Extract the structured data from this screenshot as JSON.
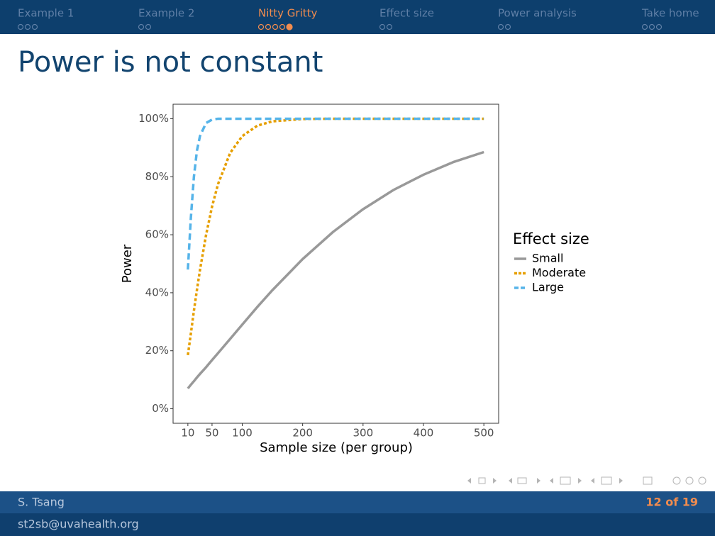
{
  "header": {
    "sections": [
      {
        "name": "Example 1",
        "frames": 3
      },
      {
        "name": "Example 2",
        "frames": 2
      },
      {
        "name": "Nitty Gritty",
        "frames": 5,
        "current_frame": 5
      },
      {
        "name": "Effect size",
        "frames": 2
      },
      {
        "name": "Power analysis",
        "frames": 2
      },
      {
        "name": "Take home",
        "frames": 3
      }
    ]
  },
  "slide": {
    "title": "Power is not constant"
  },
  "chart_data": {
    "type": "line",
    "x_label": "Sample size (per group)",
    "y_label": "Power",
    "legend_title": "Effect size",
    "legend_position": "right",
    "x": [
      10,
      15,
      20,
      25,
      30,
      40,
      50,
      60,
      80,
      100,
      125,
      150,
      200,
      250,
      300,
      350,
      400,
      450,
      500
    ],
    "series": [
      {
        "name": "Small",
        "color": "#999999",
        "dash": "solid",
        "values": [
          7,
          8.3,
          9.5,
          10.8,
          12,
          14.3,
          16.8,
          19.2,
          24.1,
          29,
          35.1,
          40.9,
          51.6,
          60.9,
          68.8,
          75.4,
          80.7,
          85.1,
          88.5
        ]
      },
      {
        "name": "Moderate",
        "color": "#E69F00",
        "dash": "dotted",
        "values": [
          18.5,
          26,
          33.8,
          41,
          47.8,
          59.8,
          69.7,
          77.5,
          88.2,
          94,
          97.6,
          99.1,
          99.9,
          100,
          100,
          100,
          100,
          100,
          100
        ]
      },
      {
        "name": "Large",
        "color": "#56B4E9",
        "dash": "dashed",
        "values": [
          48,
          66,
          80,
          89,
          94,
          98.5,
          99.7,
          100,
          100,
          100,
          100,
          100,
          100,
          100,
          100,
          100,
          100,
          100,
          100
        ]
      }
    ],
    "xlim": [
      -14.5,
      524.5
    ],
    "xticks": [
      10,
      50,
      100,
      200,
      300,
      400,
      500
    ],
    "ylim": [
      -5,
      105
    ],
    "yticks": [
      {
        "value": 0,
        "label": "0%"
      },
      {
        "value": 20,
        "label": "20%"
      },
      {
        "value": 40,
        "label": "40%"
      },
      {
        "value": 60,
        "label": "60%"
      },
      {
        "value": 80,
        "label": "80%"
      },
      {
        "value": 100,
        "label": "100%"
      }
    ]
  },
  "footer": {
    "author": "S. Tsang",
    "email": "st2sb@uvahealth.org",
    "page": "12 of 19"
  }
}
